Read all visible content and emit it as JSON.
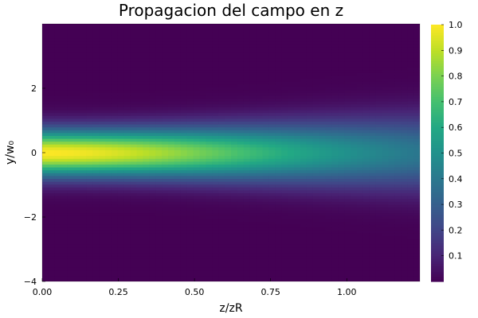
{
  "chart_data": {
    "type": "heatmap",
    "title": "Propagacion del campo en z",
    "xlabel": "z/zR",
    "ylabel": "y/w₀",
    "xlim": [
      0,
      1.24
    ],
    "ylim": [
      -4,
      4
    ],
    "x_ticks": [
      0.0,
      0.25,
      0.5,
      0.75,
      1.0
    ],
    "x_tick_labels": [
      "0.00",
      "0.25",
      "0.50",
      "0.75",
      "1.00"
    ],
    "y_ticks": [
      -4,
      -2,
      0,
      2
    ],
    "y_tick_labels": [
      "−4",
      "−2",
      "0",
      "2"
    ],
    "colorbar": {
      "colormap": "viridis",
      "range": [
        0,
        1
      ],
      "ticks": [
        0.1,
        0.2,
        0.3,
        0.4,
        0.5,
        0.6,
        0.7,
        0.8,
        0.9,
        1.0
      ],
      "tick_labels": [
        "0.1",
        "0.2",
        "0.3",
        "0.4",
        "0.5",
        "0.6",
        "0.7",
        "0.8",
        "0.9",
        "1.0"
      ]
    },
    "field": "intensity of a Gaussian beam, peak 1.0 at y=0 near z=0, decaying and widening with z",
    "grid": false
  }
}
